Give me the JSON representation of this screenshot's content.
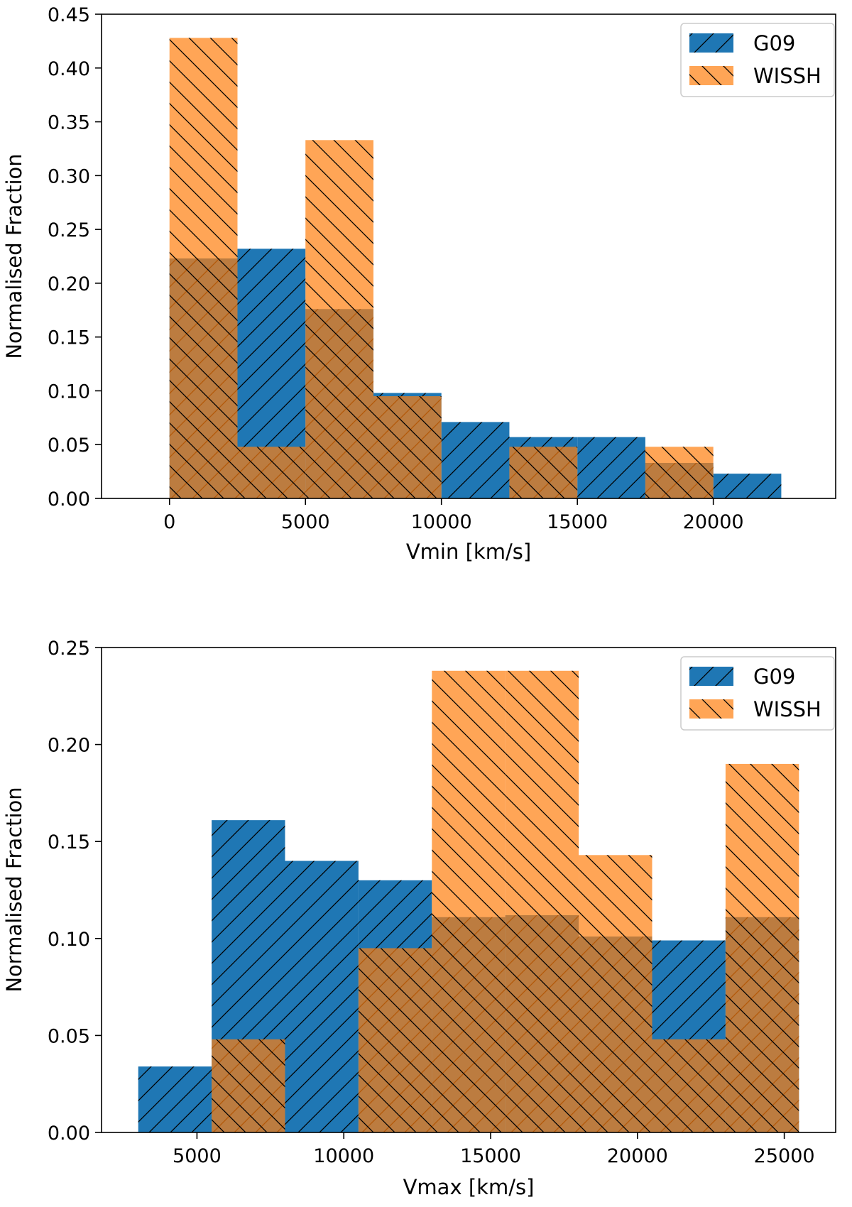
{
  "colors": {
    "g09": "#1f77b4",
    "wissh": "#ff7f0e",
    "hatch": "#000000"
  },
  "chart_data": [
    {
      "type": "bar",
      "xlabel": "Vmin [km/s]",
      "ylabel": "Normalised Fraction",
      "xlim": [
        -2500,
        24500
      ],
      "ylim": [
        0,
        0.45
      ],
      "xticks": [
        0,
        5000,
        10000,
        15000,
        20000
      ],
      "xtick_labels": [
        "0",
        "5000",
        "10000",
        "15000",
        "20000"
      ],
      "yticks": [
        0,
        0.05,
        0.1,
        0.15,
        0.2,
        0.25,
        0.3,
        0.35,
        0.4,
        0.45
      ],
      "ytick_labels": [
        "0.00",
        "0.05",
        "0.10",
        "0.15",
        "0.20",
        "0.25",
        "0.30",
        "0.35",
        "0.40",
        "0.45"
      ],
      "legend_position": "top-right",
      "series": [
        {
          "name": "G09",
          "color": "#1f77b4",
          "hatch": "/",
          "bins": [
            0,
            2500,
            5000,
            7500,
            10000,
            12500,
            15000,
            17500,
            20000,
            22500
          ],
          "values": [
            0.223,
            0.232,
            0.176,
            0.098,
            0.071,
            0.057,
            0.057,
            0.033,
            0.023
          ]
        },
        {
          "name": "WISSH",
          "color": "#ff7f0e",
          "hatch": "\\",
          "bins": [
            0,
            2500,
            5000,
            7500,
            10000,
            12500,
            15000,
            17500,
            20000
          ],
          "values": [
            0.428,
            0.048,
            0.333,
            0.095,
            0.0,
            0.048,
            0.0,
            0.048
          ]
        }
      ]
    },
    {
      "type": "bar",
      "xlabel": "Vmax [km/s]",
      "ylabel": "Normalised Fraction",
      "xlim": [
        1750,
        26750
      ],
      "ylim": [
        0,
        0.25
      ],
      "xticks": [
        5000,
        10000,
        15000,
        20000,
        25000
      ],
      "xtick_labels": [
        "5000",
        "10000",
        "15000",
        "20000",
        "25000"
      ],
      "yticks": [
        0,
        0.05,
        0.1,
        0.15,
        0.2,
        0.25
      ],
      "ytick_labels": [
        "0.00",
        "0.05",
        "0.10",
        "0.15",
        "0.20",
        "0.25"
      ],
      "legend_position": "top-right",
      "series": [
        {
          "name": "G09",
          "color": "#1f77b4",
          "hatch": "/",
          "bins": [
            3000,
            5500,
            8000,
            10500,
            13000,
            15500,
            18000,
            20500,
            23000,
            25500
          ],
          "values": [
            0.034,
            0.161,
            0.14,
            0.13,
            0.111,
            0.112,
            0.101,
            0.099,
            0.111
          ]
        },
        {
          "name": "WISSH",
          "color": "#ff7f0e",
          "hatch": "\\",
          "bins": [
            3000,
            5500,
            8000,
            10500,
            13000,
            15500,
            18000,
            20500,
            23000,
            25500
          ],
          "values": [
            0.0,
            0.048,
            0.0,
            0.095,
            0.238,
            0.238,
            0.143,
            0.048,
            0.19
          ]
        }
      ]
    }
  ]
}
